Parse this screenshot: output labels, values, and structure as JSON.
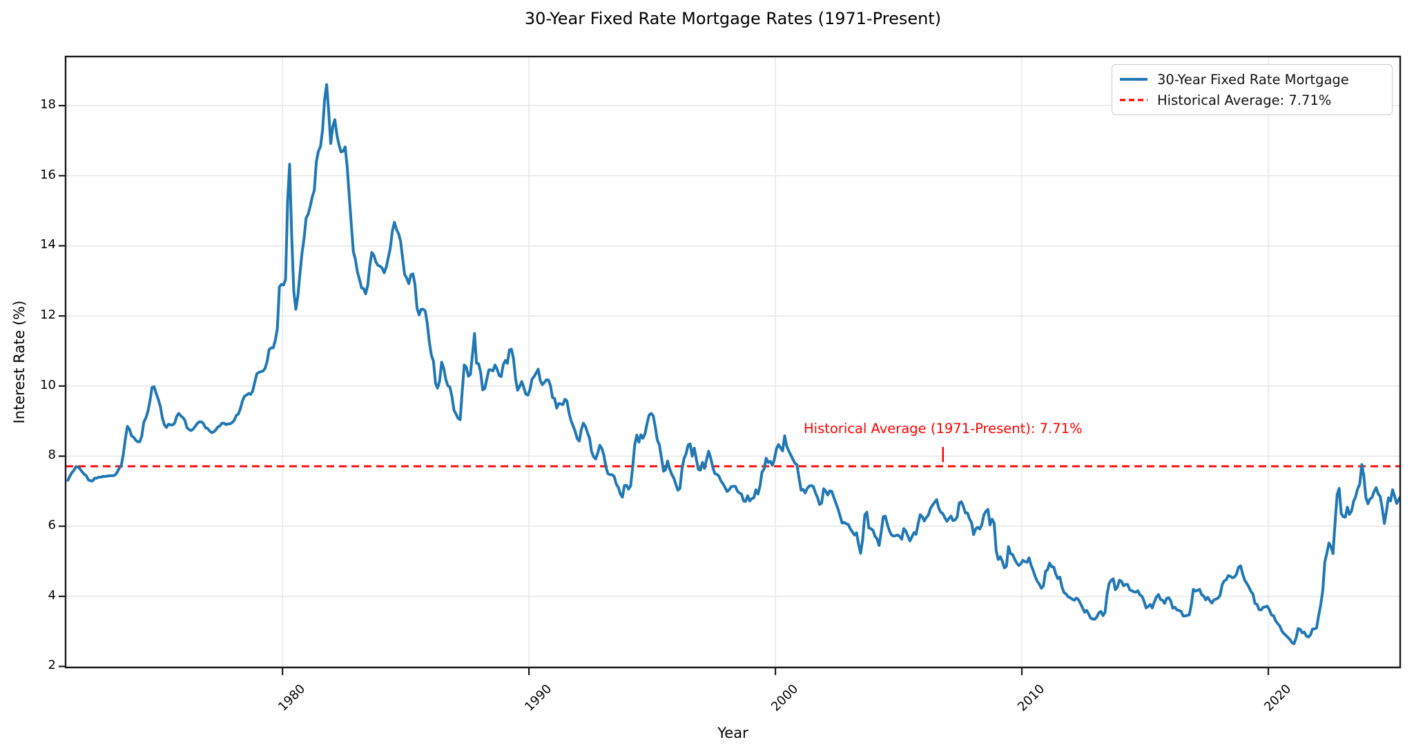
{
  "chart_data": {
    "type": "line",
    "title": "30-Year Fixed Rate Mortgage Rates (1971-Present)",
    "xlabel": "Year",
    "ylabel": "Interest Rate (%)",
    "xlim": [
      1971.2,
      2025.35
    ],
    "ylim": [
      1.97,
      19.4
    ],
    "x_ticks": [
      1980,
      1990,
      2000,
      2010,
      2020
    ],
    "y_ticks": [
      2,
      4,
      6,
      8,
      10,
      12,
      14,
      16,
      18
    ],
    "grid": true,
    "grid_color": "#e7e7e7",
    "spine_color": "#1a1a1a",
    "average_value": 7.71,
    "annotation": {
      "text": "Historical Average (1971-Present): 7.71%",
      "color": "#ff0000",
      "x_year": 2006.8
    },
    "series": [
      {
        "name": "30-Year Fixed Rate Mortgage",
        "color": "#1f77b4",
        "style": "solid",
        "start_year": 1971,
        "start_month": 4,
        "interval": "monthly",
        "values": [
          7.31,
          7.43,
          7.53,
          7.6,
          7.7,
          7.69,
          7.63,
          7.55,
          7.48,
          7.44,
          7.32,
          7.3,
          7.29,
          7.37,
          7.37,
          7.4,
          7.4,
          7.42,
          7.42,
          7.43,
          7.44,
          7.44,
          7.44,
          7.46,
          7.54,
          7.65,
          7.73,
          8.05,
          8.5,
          8.85,
          8.77,
          8.58,
          8.54,
          8.46,
          8.41,
          8.41,
          8.58,
          8.97,
          9.09,
          9.28,
          9.59,
          9.96,
          9.98,
          9.79,
          9.62,
          9.43,
          9.1,
          8.89,
          8.82,
          8.91,
          8.89,
          8.89,
          8.94,
          9.13,
          9.22,
          9.15,
          9.1,
          9.02,
          8.81,
          8.76,
          8.73,
          8.77,
          8.85,
          8.93,
          8.98,
          8.98,
          8.93,
          8.81,
          8.79,
          8.72,
          8.67,
          8.69,
          8.75,
          8.83,
          8.86,
          8.94,
          8.94,
          8.9,
          8.92,
          8.92,
          8.96,
          9.02,
          9.16,
          9.2,
          9.36,
          9.57,
          9.71,
          9.74,
          9.79,
          9.76,
          9.86,
          10.11,
          10.35,
          10.39,
          10.41,
          10.43,
          10.5,
          10.69,
          11.04,
          11.09,
          11.09,
          11.3,
          11.64,
          12.83,
          12.9,
          12.88,
          13.04,
          15.28,
          16.33,
          14.26,
          12.71,
          12.19,
          12.56,
          13.2,
          13.79,
          14.21,
          14.79,
          14.9,
          15.13,
          15.4,
          15.58,
          16.4,
          16.7,
          16.83,
          17.28,
          18.16,
          18.6,
          17.82,
          16.92,
          17.4,
          17.6,
          17.16,
          16.89,
          16.68,
          16.7,
          16.82,
          16.27,
          15.43,
          14.61,
          13.83,
          13.62,
          13.25,
          13.04,
          12.8,
          12.78,
          12.63,
          12.87,
          13.43,
          13.81,
          13.73,
          13.54,
          13.44,
          13.42,
          13.37,
          13.23,
          13.39,
          13.65,
          13.94,
          14.42,
          14.67,
          14.47,
          14.35,
          14.13,
          13.64,
          13.18,
          13.08,
          12.92,
          13.17,
          13.2,
          12.91,
          12.22,
          12.03,
          12.19,
          12.19,
          12.14,
          11.78,
          11.26,
          10.88,
          10.71,
          10.08,
          9.94,
          10.14,
          10.68,
          10.51,
          10.2,
          10.01,
          9.97,
          9.7,
          9.31,
          9.2,
          9.08,
          9.04,
          9.83,
          10.6,
          10.54,
          10.28,
          10.33,
          10.89,
          11.5,
          10.65,
          10.64,
          10.38,
          9.89,
          9.93,
          10.2,
          10.46,
          10.46,
          10.43,
          10.6,
          10.48,
          10.3,
          10.27,
          10.61,
          10.73,
          10.65,
          11.03,
          11.05,
          10.77,
          10.2,
          9.88,
          9.99,
          10.13,
          9.95,
          9.77,
          9.74,
          9.9,
          10.2,
          10.27,
          10.37,
          10.48,
          10.16,
          10.04,
          10.1,
          10.18,
          10.17,
          10.01,
          9.67,
          9.64,
          9.37,
          9.5,
          9.49,
          9.47,
          9.62,
          9.58,
          9.24,
          9.01,
          8.86,
          8.71,
          8.5,
          8.43,
          8.76,
          8.94,
          8.85,
          8.67,
          8.51,
          8.13,
          7.98,
          7.92,
          8.09,
          8.31,
          8.22,
          8.02,
          7.68,
          7.5,
          7.47,
          7.47,
          7.42,
          7.21,
          7.11,
          6.92,
          6.83,
          7.16,
          7.17,
          7.06,
          7.15,
          7.68,
          8.32,
          8.6,
          8.4,
          8.61,
          8.51,
          8.64,
          8.93,
          9.17,
          9.22,
          9.15,
          8.83,
          8.46,
          8.32,
          7.96,
          7.57,
          7.61,
          7.86,
          7.64,
          7.48,
          7.38,
          7.2,
          7.03,
          7.08,
          7.62,
          7.93,
          8.07,
          8.32,
          8.35,
          8.0,
          8.23,
          7.92,
          7.62,
          7.6,
          7.82,
          7.65,
          7.9,
          8.14,
          7.94,
          7.69,
          7.5,
          7.48,
          7.43,
          7.29,
          7.21,
          7.1,
          6.99,
          7.04,
          7.13,
          7.14,
          7.14,
          7.0,
          6.95,
          6.92,
          6.72,
          6.71,
          6.87,
          6.72,
          6.79,
          6.81,
          7.04,
          6.92,
          7.15,
          7.55,
          7.63,
          7.94,
          7.82,
          7.85,
          7.74,
          7.91,
          8.21,
          8.33,
          8.24,
          8.15,
          8.58,
          8.29,
          8.15,
          8.03,
          7.91,
          7.8,
          7.75,
          7.38,
          7.03,
          7.05,
          6.95,
          7.08,
          7.15,
          7.16,
          7.13,
          6.95,
          6.82,
          6.62,
          6.66,
          7.07,
          7.0,
          6.89,
          7.01,
          6.99,
          6.81,
          6.65,
          6.49,
          6.29,
          6.09,
          6.11,
          6.07,
          6.05,
          5.92,
          5.84,
          5.75,
          5.81,
          5.48,
          5.23,
          5.63,
          6.32,
          6.4,
          5.95,
          5.93,
          5.88,
          5.71,
          5.64,
          5.45,
          5.83,
          6.27,
          6.29,
          6.06,
          5.87,
          5.75,
          5.72,
          5.73,
          5.75,
          5.71,
          5.63,
          5.93,
          5.86,
          5.72,
          5.58,
          5.7,
          5.82,
          5.77,
          6.07,
          6.33,
          6.27,
          6.15,
          6.25,
          6.32,
          6.51,
          6.6,
          6.68,
          6.76,
          6.52,
          6.4,
          6.36,
          6.24,
          6.14,
          6.22,
          6.29,
          6.16,
          6.18,
          6.26,
          6.66,
          6.7,
          6.57,
          6.38,
          6.38,
          6.21,
          6.1,
          5.76,
          5.92,
          5.97,
          5.92,
          6.04,
          6.32,
          6.43,
          6.48,
          6.04,
          6.2,
          6.09,
          5.29,
          5.05,
          5.13,
          5.0,
          4.81,
          4.86,
          5.42,
          5.22,
          5.19,
          5.06,
          4.95,
          4.88,
          4.93,
          5.03,
          4.99,
          4.97,
          5.1,
          4.89,
          4.74,
          4.56,
          4.43,
          4.35,
          4.23,
          4.3,
          4.71,
          4.76,
          4.95,
          4.84,
          4.84,
          4.64,
          4.51,
          4.55,
          4.27,
          4.11,
          4.07,
          3.99,
          3.96,
          3.92,
          3.89,
          3.95,
          3.91,
          3.8,
          3.68,
          3.55,
          3.6,
          3.5,
          3.38,
          3.35,
          3.35,
          3.41,
          3.53,
          3.57,
          3.45,
          3.54,
          4.07,
          4.37,
          4.46,
          4.5,
          4.19,
          4.26,
          4.46,
          4.43,
          4.3,
          4.34,
          4.34,
          4.19,
          4.16,
          4.13,
          4.12,
          4.16,
          4.04,
          4.0,
          3.86,
          3.67,
          3.71,
          3.77,
          3.67,
          3.84,
          3.98,
          4.05,
          3.91,
          3.89,
          3.8,
          3.94,
          3.96,
          3.87,
          3.66,
          3.69,
          3.61,
          3.6,
          3.57,
          3.44,
          3.44,
          3.46,
          3.47,
          3.77,
          4.2,
          4.15,
          4.17,
          4.2,
          4.05,
          4.01,
          3.9,
          3.97,
          3.88,
          3.81,
          3.9,
          3.92,
          3.95,
          4.03,
          4.33,
          4.44,
          4.47,
          4.59,
          4.57,
          4.53,
          4.55,
          4.63,
          4.83,
          4.87,
          4.64,
          4.46,
          4.37,
          4.27,
          4.14,
          4.07,
          3.8,
          3.77,
          3.62,
          3.61,
          3.69,
          3.7,
          3.72,
          3.62,
          3.47,
          3.45,
          3.31,
          3.23,
          3.16,
          3.02,
          2.94,
          2.89,
          2.83,
          2.77,
          2.68,
          2.65,
          2.81,
          3.08,
          3.06,
          2.96,
          2.98,
          2.87,
          2.84,
          2.9,
          3.07,
          3.07,
          3.1,
          3.45,
          3.76,
          4.17,
          4.98,
          5.23,
          5.52,
          5.41,
          5.22,
          6.11,
          6.9,
          7.08,
          6.36,
          6.27,
          6.26,
          6.54,
          6.34,
          6.43,
          6.71,
          6.84,
          7.07,
          7.2,
          7.76,
          7.44,
          6.82,
          6.64,
          6.78,
          6.82,
          6.99,
          7.1,
          6.92,
          6.85,
          6.5,
          6.08,
          6.43,
          6.81,
          6.72,
          7.04,
          6.85,
          6.65,
          6.76,
          6.86,
          6.77
        ]
      },
      {
        "name": "Historical Average: 7.71%",
        "color": "#ff0000",
        "style": "dashed",
        "value": 7.71
      }
    ]
  },
  "legend": {
    "items": [
      {
        "label": "30-Year Fixed Rate Mortgage",
        "color": "#1f77b4",
        "dash": false
      },
      {
        "label": "Historical Average: 7.71%",
        "color": "#ff0000",
        "dash": true
      }
    ]
  }
}
